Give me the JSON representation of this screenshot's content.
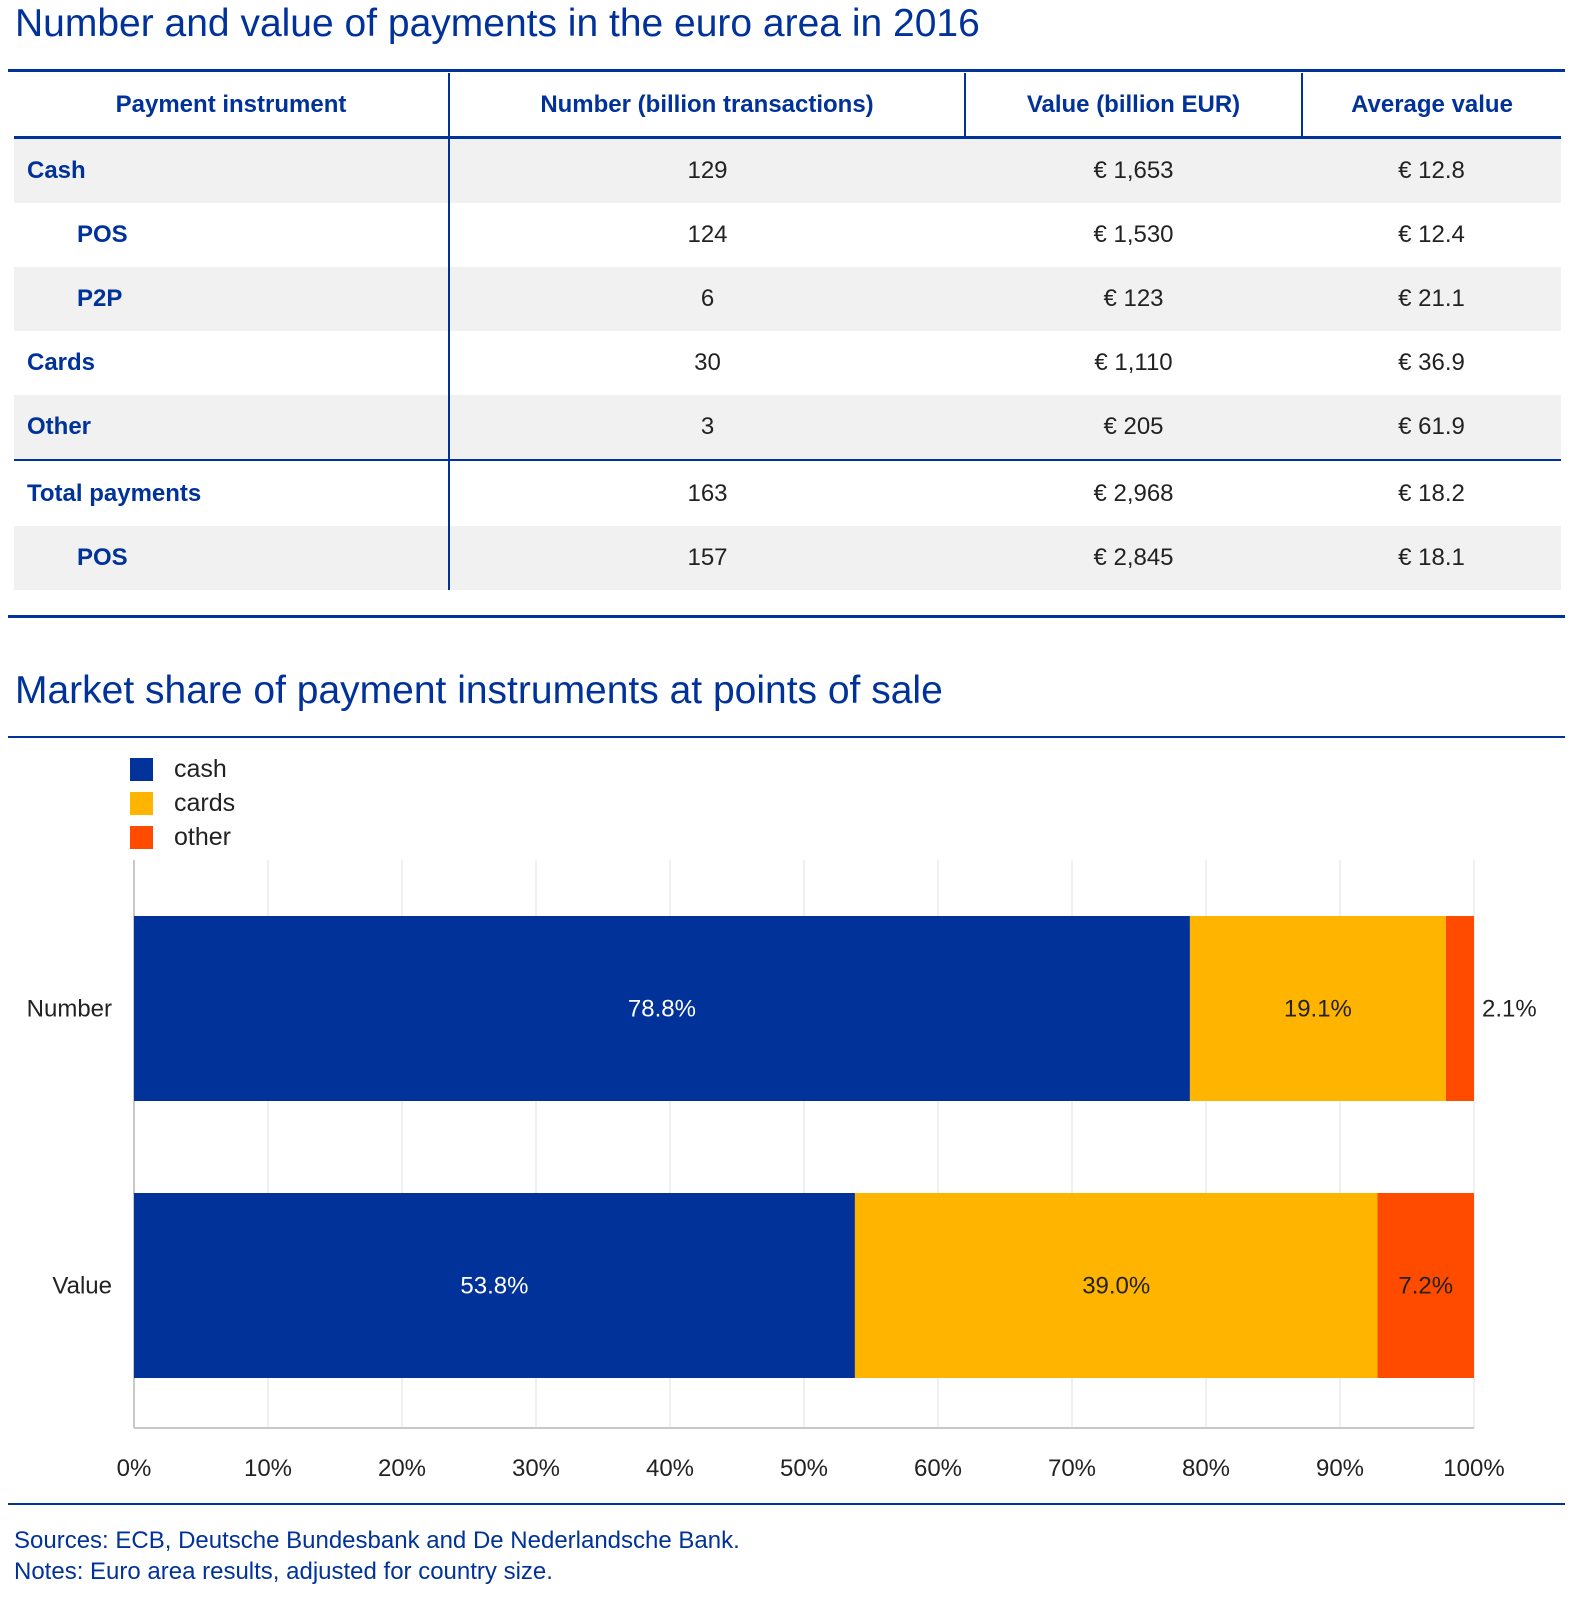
{
  "table_title": "Number and value of payments in the euro area in 2016",
  "table": {
    "headers": [
      "Payment instrument",
      "Number (billion transactions)",
      "Value (billion EUR)",
      "Average value"
    ],
    "rows": [
      {
        "label": "Cash",
        "number": "129",
        "value": "€ 1,653",
        "avg": "€ 12.8"
      },
      {
        "label": "POS",
        "number": "124",
        "value": "€ 1,530",
        "avg": "€ 12.4"
      },
      {
        "label": "P2P",
        "number": "6",
        "value": "€ 123",
        "avg": "€ 21.1"
      },
      {
        "label": "Cards",
        "number": "30",
        "value": "€ 1,110",
        "avg": "€ 36.9"
      },
      {
        "label": "Other",
        "number": "3",
        "value": "€ 205",
        "avg": "€ 61.9"
      },
      {
        "label": "Total payments",
        "number": "163",
        "value": "€ 2,968",
        "avg": "€ 18.2"
      },
      {
        "label": "POS",
        "number": "157",
        "value": "€ 2,845",
        "avg": "€ 18.1"
      }
    ]
  },
  "chart_title": "Market share of payment instruments at points of sale",
  "chart_data": {
    "type": "bar",
    "orientation": "horizontal",
    "stacked": true,
    "categories": [
      "Number",
      "Value"
    ],
    "series": [
      {
        "name": "cash",
        "color": "#003299",
        "values": [
          78.8,
          53.8
        ],
        "labels": [
          "78.8%",
          "53.8%"
        ]
      },
      {
        "name": "cards",
        "color": "#ffb400",
        "values": [
          19.1,
          39.0
        ],
        "labels": [
          "19.1%",
          "39.0%"
        ]
      },
      {
        "name": "other",
        "color": "#ff4b00",
        "values": [
          2.1,
          7.2
        ],
        "labels": [
          "2.1%",
          "7.2%"
        ]
      }
    ],
    "xlim": [
      0,
      100
    ],
    "xticks": [
      "0%",
      "10%",
      "20%",
      "30%",
      "40%",
      "50%",
      "60%",
      "70%",
      "80%",
      "90%",
      "100%"
    ],
    "grid": true,
    "legend": "top-left"
  },
  "sources": "Sources: ECB, Deutsche Bundesbank and De Nederlandsche Bank.",
  "notes": "Notes: Euro area results, adjusted for country size."
}
